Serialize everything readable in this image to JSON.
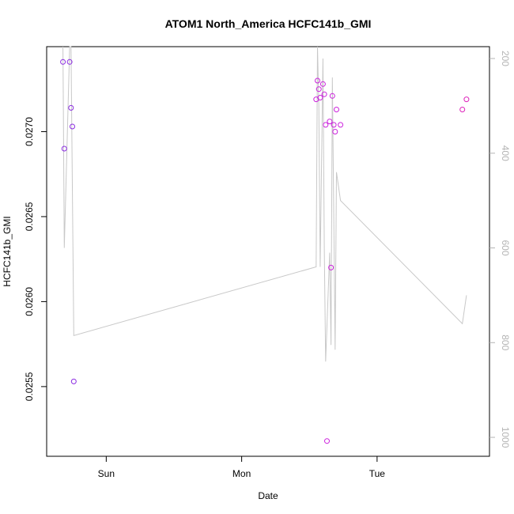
{
  "chart_data": {
    "type": "scatter",
    "title": "ATOM1 North_America HCFC141b_GMI",
    "xlabel": "Date",
    "ylabel": "HCFC141b_GMI",
    "x_unit": "day (Sun=0, Mon=1, Tue=2 at tick positions)",
    "xlim": [
      -0.44,
      2.83
    ],
    "ylim": [
      0.02509,
      0.0275
    ],
    "x_ticks": [
      {
        "label": "Sun",
        "value": 0
      },
      {
        "label": "Mon",
        "value": 1
      },
      {
        "label": "Tue",
        "value": 2
      }
    ],
    "y_ticks": [
      {
        "label": "0.0255",
        "value": 0.0255
      },
      {
        "label": "0.0260",
        "value": 0.026
      },
      {
        "label": "0.0265",
        "value": 0.0265
      },
      {
        "label": "0.0270",
        "value": 0.027
      }
    ],
    "secondary_axis": {
      "side": "right",
      "color": "#b4b4b4",
      "lim": [
        1040,
        175
      ],
      "ticks": [
        {
          "label": "200",
          "value": 200
        },
        {
          "label": "400",
          "value": 400
        },
        {
          "label": "600",
          "value": 600
        },
        {
          "label": "800",
          "value": 800
        },
        {
          "label": "1000",
          "value": 1000
        }
      ]
    },
    "points": [
      {
        "x": -0.32,
        "y": 0.02741,
        "color": "#8b2be2"
      },
      {
        "x": -0.31,
        "y": 0.0269,
        "color": "#8b2be2"
      },
      {
        "x": -0.27,
        "y": 0.02741,
        "color": "#8b2be2"
      },
      {
        "x": -0.26,
        "y": 0.02714,
        "color": "#8b2be2"
      },
      {
        "x": -0.25,
        "y": 0.02703,
        "color": "#8b2be2"
      },
      {
        "x": -0.24,
        "y": 0.02553,
        "color": "#8b2be2"
      },
      {
        "x": 1.55,
        "y": 0.02719,
        "color": "#cc22dd"
      },
      {
        "x": 1.56,
        "y": 0.0273,
        "color": "#cc22dd"
      },
      {
        "x": 1.58,
        "y": 0.0272,
        "color": "#cc22dd"
      },
      {
        "x": 1.57,
        "y": 0.02725,
        "color": "#cc22dd"
      },
      {
        "x": 1.6,
        "y": 0.02728,
        "color": "#cc22dd"
      },
      {
        "x": 1.61,
        "y": 0.02722,
        "color": "#cc22dd"
      },
      {
        "x": 1.62,
        "y": 0.02704,
        "color": "#cc22dd"
      },
      {
        "x": 1.63,
        "y": 0.02518,
        "color": "#cc22dd"
      },
      {
        "x": 1.65,
        "y": 0.02706,
        "color": "#cc22dd"
      },
      {
        "x": 1.66,
        "y": 0.0262,
        "color": "#cc22dd"
      },
      {
        "x": 1.67,
        "y": 0.02721,
        "color": "#cc22dd"
      },
      {
        "x": 1.68,
        "y": 0.02704,
        "color": "#cc22dd"
      },
      {
        "x": 1.69,
        "y": 0.027,
        "color": "#cc22dd"
      },
      {
        "x": 1.7,
        "y": 0.02713,
        "color": "#cc22dd"
      },
      {
        "x": 1.73,
        "y": 0.02704,
        "color": "#cc22dd"
      },
      {
        "x": 2.63,
        "y": 0.02713,
        "color": "#dd22bb"
      },
      {
        "x": 2.66,
        "y": 0.02719,
        "color": "#dd22bb"
      }
    ],
    "secondary_line": {
      "color": "#c8c8c8",
      "x": [
        -0.32,
        -0.31,
        -0.27,
        -0.26,
        -0.24,
        1.55,
        1.56,
        1.57,
        1.58,
        1.6,
        1.61,
        1.62,
        1.65,
        1.66,
        1.67,
        1.69,
        1.7,
        1.73,
        2.63,
        2.66
      ],
      "y": [
        175,
        600,
        175,
        175,
        785,
        640,
        175,
        300,
        640,
        200,
        600,
        840,
        610,
        805,
        240,
        815,
        440,
        500,
        760,
        700
      ]
    },
    "grid": false,
    "legend": "none"
  }
}
